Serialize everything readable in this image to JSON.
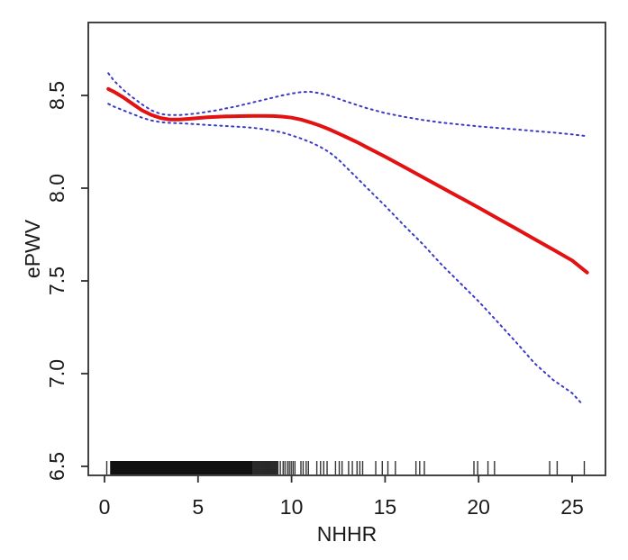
{
  "chart_data": {
    "type": "line",
    "title": "",
    "xlabel": "NHHR",
    "ylabel": "ePWV",
    "x_ticks": [
      0,
      5,
      10,
      15,
      20,
      25
    ],
    "y_tick_labels": [
      "6.5",
      "7.0",
      "7.5",
      "8.0",
      "8.5"
    ],
    "y_ticks": [
      6.5,
      7.0,
      7.5,
      8.0,
      8.5
    ],
    "xlim": [
      -0.87,
      26.78
    ],
    "ylim": [
      6.46,
      8.89
    ],
    "grid": false,
    "legend": "none",
    "colors": {
      "fit": "#e31212",
      "confidence": "#3a3ac8",
      "axis": "#2f2f2f",
      "rug": "#111111",
      "background": "#ffffff"
    },
    "series": [
      {
        "name": "fitted_curve",
        "style": "solid",
        "color": "#e31212",
        "points": [
          [
            0.2,
            8.535
          ],
          [
            0.5,
            8.52
          ],
          [
            1,
            8.49
          ],
          [
            1.5,
            8.455
          ],
          [
            2,
            8.42
          ],
          [
            2.5,
            8.395
          ],
          [
            3,
            8.378
          ],
          [
            3.5,
            8.37
          ],
          [
            4,
            8.37
          ],
          [
            4.5,
            8.374
          ],
          [
            5,
            8.378
          ],
          [
            5.5,
            8.382
          ],
          [
            6,
            8.385
          ],
          [
            6.5,
            8.387
          ],
          [
            7,
            8.388
          ],
          [
            7.5,
            8.389
          ],
          [
            8,
            8.39
          ],
          [
            8.5,
            8.39
          ],
          [
            9,
            8.389
          ],
          [
            9.5,
            8.386
          ],
          [
            10,
            8.38
          ],
          [
            10.5,
            8.37
          ],
          [
            11,
            8.355
          ],
          [
            11.5,
            8.338
          ],
          [
            12,
            8.318
          ],
          [
            12.5,
            8.295
          ],
          [
            13,
            8.272
          ],
          [
            13.5,
            8.248
          ],
          [
            14,
            8.222
          ],
          [
            15,
            8.17
          ],
          [
            16,
            8.115
          ],
          [
            17,
            8.06
          ],
          [
            18,
            8.005
          ],
          [
            19,
            7.95
          ],
          [
            20,
            7.895
          ],
          [
            21,
            7.838
          ],
          [
            22,
            7.782
          ],
          [
            23,
            7.725
          ],
          [
            24,
            7.668
          ],
          [
            25,
            7.61
          ],
          [
            25.8,
            7.545
          ]
        ]
      },
      {
        "name": "upper_confidence_band",
        "style": "dotted",
        "color": "#3a3ac8",
        "points": [
          [
            0.2,
            8.62
          ],
          [
            0.5,
            8.58
          ],
          [
            1,
            8.53
          ],
          [
            1.5,
            8.49
          ],
          [
            2,
            8.452
          ],
          [
            2.5,
            8.42
          ],
          [
            3,
            8.4
          ],
          [
            3.5,
            8.394
          ],
          [
            4,
            8.394
          ],
          [
            4.5,
            8.398
          ],
          [
            5,
            8.404
          ],
          [
            5.5,
            8.412
          ],
          [
            6,
            8.42
          ],
          [
            6.5,
            8.43
          ],
          [
            7,
            8.44
          ],
          [
            7.5,
            8.452
          ],
          [
            8,
            8.464
          ],
          [
            8.5,
            8.476
          ],
          [
            9,
            8.488
          ],
          [
            9.5,
            8.5
          ],
          [
            10,
            8.51
          ],
          [
            10.5,
            8.518
          ],
          [
            11,
            8.52
          ],
          [
            11.5,
            8.512
          ],
          [
            12,
            8.5
          ],
          [
            12.5,
            8.482
          ],
          [
            13,
            8.465
          ],
          [
            13.5,
            8.448
          ],
          [
            14,
            8.432
          ],
          [
            15,
            8.405
          ],
          [
            16,
            8.385
          ],
          [
            17,
            8.368
          ],
          [
            18,
            8.354
          ],
          [
            19,
            8.343
          ],
          [
            20,
            8.333
          ],
          [
            21,
            8.325
          ],
          [
            22,
            8.317
          ],
          [
            23,
            8.308
          ],
          [
            24,
            8.3
          ],
          [
            25,
            8.29
          ],
          [
            25.8,
            8.28
          ]
        ]
      },
      {
        "name": "lower_confidence_band",
        "style": "dotted",
        "color": "#3a3ac8",
        "points": [
          [
            0.2,
            8.455
          ],
          [
            0.5,
            8.44
          ],
          [
            1,
            8.42
          ],
          [
            1.5,
            8.4
          ],
          [
            2,
            8.38
          ],
          [
            2.5,
            8.365
          ],
          [
            3,
            8.356
          ],
          [
            3.5,
            8.352
          ],
          [
            4,
            8.35
          ],
          [
            4.5,
            8.347
          ],
          [
            5,
            8.344
          ],
          [
            5.5,
            8.341
          ],
          [
            6,
            8.338
          ],
          [
            6.5,
            8.335
          ],
          [
            7,
            8.332
          ],
          [
            7.5,
            8.329
          ],
          [
            8,
            8.325
          ],
          [
            8.5,
            8.318
          ],
          [
            9,
            8.31
          ],
          [
            9.5,
            8.3
          ],
          [
            10,
            8.285
          ],
          [
            10.5,
            8.268
          ],
          [
            11,
            8.248
          ],
          [
            11.5,
            8.225
          ],
          [
            12,
            8.195
          ],
          [
            12.5,
            8.155
          ],
          [
            13,
            8.105
          ],
          [
            13.5,
            8.055
          ],
          [
            14,
            8.005
          ],
          [
            15,
            7.905
          ],
          [
            16,
            7.8
          ],
          [
            17,
            7.7
          ],
          [
            18,
            7.59
          ],
          [
            19,
            7.49
          ],
          [
            20,
            7.39
          ],
          [
            21,
            7.28
          ],
          [
            22,
            7.17
          ],
          [
            23,
            7.055
          ],
          [
            24,
            6.965
          ],
          [
            25,
            6.895
          ],
          [
            25.5,
            6.84
          ]
        ]
      }
    ],
    "rug": {
      "dense_band": [
        0.3,
        7.9
      ],
      "semi_dense": {
        "from": 7.92,
        "to": 9.32,
        "step": 0.05
      },
      "ticks": [
        0.12,
        9.4,
        9.55,
        9.65,
        9.78,
        9.88,
        9.98,
        10.08,
        10.18,
        10.5,
        10.62,
        10.78,
        10.9,
        11.35,
        11.55,
        11.72,
        11.9,
        12.35,
        12.55,
        12.7,
        13.05,
        13.25,
        13.5,
        13.65,
        13.8,
        14.5,
        14.85,
        15.15,
        15.55,
        16.65,
        16.85,
        17.1,
        19.75,
        19.95,
        20.5,
        20.85,
        23.8,
        24.2,
        25.65
      ]
    }
  }
}
